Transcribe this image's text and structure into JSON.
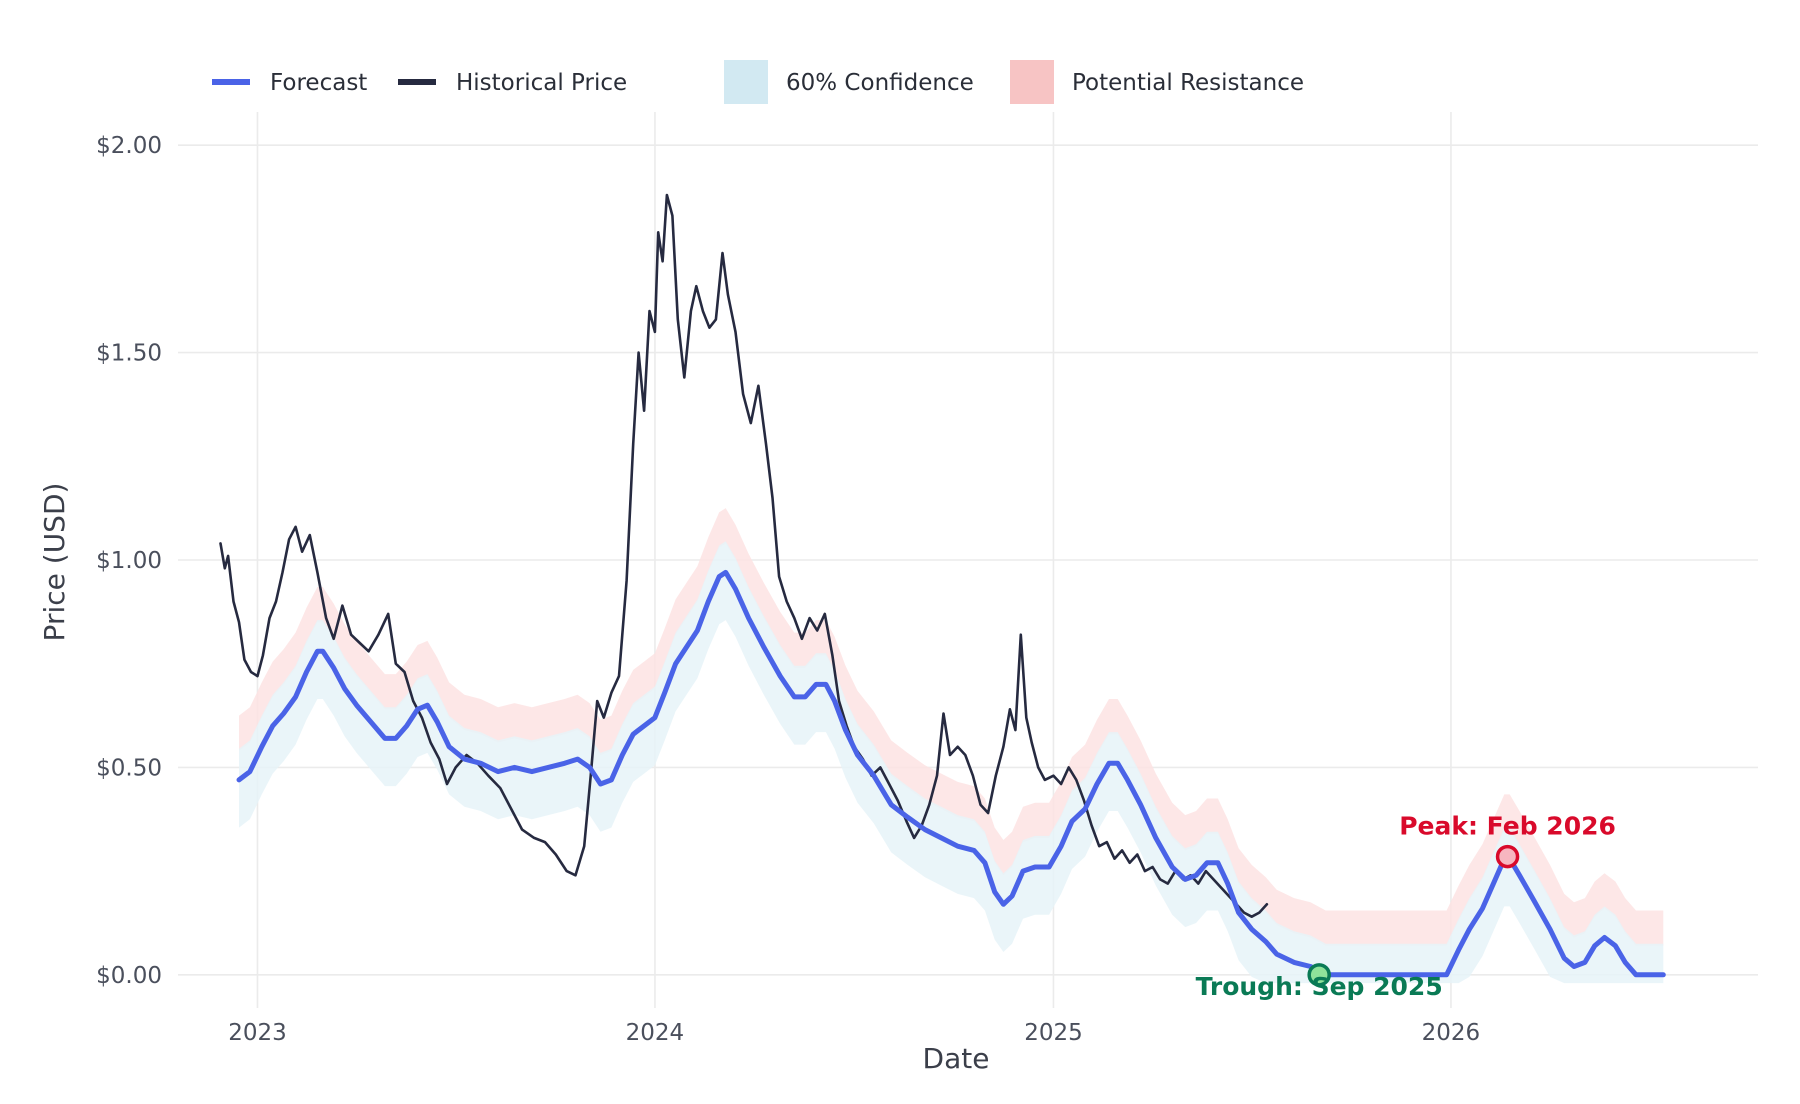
{
  "chart_data": {
    "type": "line",
    "title": "",
    "xlabel": "Date",
    "ylabel": "Price (USD)",
    "xlim": [
      "2022-10-20",
      "2026-10-10"
    ],
    "ylim": [
      -0.08,
      2.08
    ],
    "grid": true,
    "legend_position": "top-left",
    "x_ticks": [
      {
        "date": "2023-01-01",
        "label": "2023"
      },
      {
        "date": "2024-01-01",
        "label": "2024"
      },
      {
        "date": "2025-01-01",
        "label": "2025"
      },
      {
        "date": "2026-01-01",
        "label": "2026"
      }
    ],
    "y_ticks": [
      {
        "value": 0.0,
        "label": "$0.00"
      },
      {
        "value": 0.5,
        "label": "$0.50"
      },
      {
        "value": 1.0,
        "label": "$1.00"
      },
      {
        "value": 1.5,
        "label": "$1.50"
      },
      {
        "value": 2.0,
        "label": "$2.00"
      }
    ],
    "legend": [
      {
        "label": "Forecast",
        "kind": "line",
        "color": "#4a63e7"
      },
      {
        "label": "Historical Price",
        "kind": "line",
        "color": "#262a40"
      },
      {
        "label": "60% Confidence",
        "kind": "patch",
        "color": "#d2e9f2"
      },
      {
        "label": "Potential Resistance",
        "kind": "patch",
        "color": "#f7c4c4"
      }
    ],
    "series": [
      {
        "key": "historical",
        "color": "#262a40",
        "points": [
          [
            "2022-11-28",
            1.04
          ],
          [
            "2022-12-02",
            0.98
          ],
          [
            "2022-12-05",
            1.01
          ],
          [
            "2022-12-10",
            0.9
          ],
          [
            "2022-12-15",
            0.85
          ],
          [
            "2022-12-20",
            0.76
          ],
          [
            "2022-12-26",
            0.73
          ],
          [
            "2023-01-01",
            0.72
          ],
          [
            "2023-01-06",
            0.77
          ],
          [
            "2023-01-12",
            0.86
          ],
          [
            "2023-01-18",
            0.9
          ],
          [
            "2023-01-24",
            0.97
          ],
          [
            "2023-01-30",
            1.05
          ],
          [
            "2023-02-05",
            1.08
          ],
          [
            "2023-02-11",
            1.02
          ],
          [
            "2023-02-18",
            1.06
          ],
          [
            "2023-02-25",
            0.97
          ],
          [
            "2023-03-05",
            0.86
          ],
          [
            "2023-03-12",
            0.81
          ],
          [
            "2023-03-20",
            0.89
          ],
          [
            "2023-03-28",
            0.82
          ],
          [
            "2023-04-05",
            0.8
          ],
          [
            "2023-04-13",
            0.78
          ],
          [
            "2023-04-22",
            0.82
          ],
          [
            "2023-05-01",
            0.87
          ],
          [
            "2023-05-08",
            0.75
          ],
          [
            "2023-05-16",
            0.73
          ],
          [
            "2023-05-24",
            0.66
          ],
          [
            "2023-06-01",
            0.62
          ],
          [
            "2023-06-09",
            0.56
          ],
          [
            "2023-06-17",
            0.52
          ],
          [
            "2023-06-24",
            0.46
          ],
          [
            "2023-07-02",
            0.5
          ],
          [
            "2023-07-12",
            0.53
          ],
          [
            "2023-07-22",
            0.51
          ],
          [
            "2023-08-01",
            0.48
          ],
          [
            "2023-08-12",
            0.45
          ],
          [
            "2023-08-22",
            0.4
          ],
          [
            "2023-09-01",
            0.35
          ],
          [
            "2023-09-12",
            0.33
          ],
          [
            "2023-09-22",
            0.32
          ],
          [
            "2023-10-02",
            0.29
          ],
          [
            "2023-10-12",
            0.25
          ],
          [
            "2023-10-20",
            0.24
          ],
          [
            "2023-10-28",
            0.31
          ],
          [
            "2023-11-03",
            0.48
          ],
          [
            "2023-11-09",
            0.66
          ],
          [
            "2023-11-15",
            0.62
          ],
          [
            "2023-11-22",
            0.68
          ],
          [
            "2023-11-29",
            0.72
          ],
          [
            "2023-12-06",
            0.95
          ],
          [
            "2023-12-12",
            1.28
          ],
          [
            "2023-12-17",
            1.5
          ],
          [
            "2023-12-22",
            1.36
          ],
          [
            "2023-12-27",
            1.6
          ],
          [
            "2024-01-01",
            1.55
          ],
          [
            "2024-01-04",
            1.79
          ],
          [
            "2024-01-08",
            1.72
          ],
          [
            "2024-01-12",
            1.88
          ],
          [
            "2024-01-17",
            1.83
          ],
          [
            "2024-01-22",
            1.58
          ],
          [
            "2024-01-28",
            1.44
          ],
          [
            "2024-02-03",
            1.6
          ],
          [
            "2024-02-08",
            1.66
          ],
          [
            "2024-02-14",
            1.6
          ],
          [
            "2024-02-20",
            1.56
          ],
          [
            "2024-02-26",
            1.58
          ],
          [
            "2024-03-03",
            1.74
          ],
          [
            "2024-03-08",
            1.64
          ],
          [
            "2024-03-15",
            1.55
          ],
          [
            "2024-03-22",
            1.4
          ],
          [
            "2024-03-29",
            1.33
          ],
          [
            "2024-04-05",
            1.42
          ],
          [
            "2024-04-12",
            1.28
          ],
          [
            "2024-04-18",
            1.15
          ],
          [
            "2024-04-24",
            0.96
          ],
          [
            "2024-05-01",
            0.9
          ],
          [
            "2024-05-08",
            0.86
          ],
          [
            "2024-05-15",
            0.81
          ],
          [
            "2024-05-22",
            0.86
          ],
          [
            "2024-05-29",
            0.83
          ],
          [
            "2024-06-05",
            0.87
          ],
          [
            "2024-06-12",
            0.77
          ],
          [
            "2024-06-18",
            0.66
          ],
          [
            "2024-06-25",
            0.6
          ],
          [
            "2024-07-02",
            0.55
          ],
          [
            "2024-07-10",
            0.52
          ],
          [
            "2024-07-18",
            0.48
          ],
          [
            "2024-07-26",
            0.5
          ],
          [
            "2024-08-03",
            0.46
          ],
          [
            "2024-08-11",
            0.42
          ],
          [
            "2024-08-19",
            0.37
          ],
          [
            "2024-08-26",
            0.33
          ],
          [
            "2024-09-02",
            0.36
          ],
          [
            "2024-09-09",
            0.41
          ],
          [
            "2024-09-16",
            0.48
          ],
          [
            "2024-09-22",
            0.63
          ],
          [
            "2024-09-28",
            0.53
          ],
          [
            "2024-10-05",
            0.55
          ],
          [
            "2024-10-12",
            0.53
          ],
          [
            "2024-10-19",
            0.48
          ],
          [
            "2024-10-26",
            0.41
          ],
          [
            "2024-11-02",
            0.39
          ],
          [
            "2024-11-09",
            0.48
          ],
          [
            "2024-11-16",
            0.55
          ],
          [
            "2024-11-22",
            0.64
          ],
          [
            "2024-11-27",
            0.59
          ],
          [
            "2024-12-02",
            0.82
          ],
          [
            "2024-12-07",
            0.62
          ],
          [
            "2024-12-12",
            0.56
          ],
          [
            "2024-12-18",
            0.5
          ],
          [
            "2024-12-24",
            0.47
          ],
          [
            "2025-01-01",
            0.48
          ],
          [
            "2025-01-08",
            0.46
          ],
          [
            "2025-01-15",
            0.5
          ],
          [
            "2025-01-22",
            0.47
          ],
          [
            "2025-01-29",
            0.42
          ],
          [
            "2025-02-05",
            0.36
          ],
          [
            "2025-02-12",
            0.31
          ],
          [
            "2025-02-19",
            0.32
          ],
          [
            "2025-02-26",
            0.28
          ],
          [
            "2025-03-05",
            0.3
          ],
          [
            "2025-03-12",
            0.27
          ],
          [
            "2025-03-19",
            0.29
          ],
          [
            "2025-03-26",
            0.25
          ],
          [
            "2025-04-02",
            0.26
          ],
          [
            "2025-04-09",
            0.23
          ],
          [
            "2025-04-16",
            0.22
          ],
          [
            "2025-04-23",
            0.25
          ],
          [
            "2025-04-30",
            0.23
          ],
          [
            "2025-05-07",
            0.24
          ],
          [
            "2025-05-14",
            0.22
          ],
          [
            "2025-05-21",
            0.25
          ],
          [
            "2025-05-28",
            0.23
          ],
          [
            "2025-06-04",
            0.21
          ],
          [
            "2025-06-11",
            0.19
          ],
          [
            "2025-06-18",
            0.17
          ],
          [
            "2025-06-25",
            0.15
          ],
          [
            "2025-07-02",
            0.14
          ],
          [
            "2025-07-09",
            0.15
          ],
          [
            "2025-07-16",
            0.17
          ]
        ]
      },
      {
        "key": "forecast",
        "color": "#4a63e7",
        "points": [
          [
            "2022-12-15",
            0.47
          ],
          [
            "2022-12-25",
            0.49
          ],
          [
            "2023-01-05",
            0.55
          ],
          [
            "2023-01-15",
            0.6
          ],
          [
            "2023-01-25",
            0.63
          ],
          [
            "2023-02-05",
            0.67
          ],
          [
            "2023-02-15",
            0.73
          ],
          [
            "2023-02-25",
            0.78
          ],
          [
            "2023-03-02",
            0.78
          ],
          [
            "2023-03-12",
            0.74
          ],
          [
            "2023-03-22",
            0.69
          ],
          [
            "2023-04-02",
            0.65
          ],
          [
            "2023-04-15",
            0.61
          ],
          [
            "2023-04-28",
            0.57
          ],
          [
            "2023-05-08",
            0.57
          ],
          [
            "2023-05-18",
            0.6
          ],
          [
            "2023-05-28",
            0.64
          ],
          [
            "2023-06-06",
            0.65
          ],
          [
            "2023-06-15",
            0.61
          ],
          [
            "2023-06-26",
            0.55
          ],
          [
            "2023-07-10",
            0.52
          ],
          [
            "2023-07-25",
            0.51
          ],
          [
            "2023-08-10",
            0.49
          ],
          [
            "2023-08-25",
            0.5
          ],
          [
            "2023-09-10",
            0.49
          ],
          [
            "2023-09-25",
            0.5
          ],
          [
            "2023-10-10",
            0.51
          ],
          [
            "2023-10-22",
            0.52
          ],
          [
            "2023-11-02",
            0.5
          ],
          [
            "2023-11-12",
            0.46
          ],
          [
            "2023-11-22",
            0.47
          ],
          [
            "2023-12-02",
            0.53
          ],
          [
            "2023-12-12",
            0.58
          ],
          [
            "2023-12-22",
            0.6
          ],
          [
            "2024-01-01",
            0.62
          ],
          [
            "2024-01-10",
            0.68
          ],
          [
            "2024-01-20",
            0.75
          ],
          [
            "2024-01-30",
            0.79
          ],
          [
            "2024-02-09",
            0.83
          ],
          [
            "2024-02-19",
            0.9
          ],
          [
            "2024-02-29",
            0.96
          ],
          [
            "2024-03-06",
            0.97
          ],
          [
            "2024-03-15",
            0.93
          ],
          [
            "2024-03-27",
            0.86
          ],
          [
            "2024-04-10",
            0.79
          ],
          [
            "2024-04-25",
            0.72
          ],
          [
            "2024-05-08",
            0.67
          ],
          [
            "2024-05-18",
            0.67
          ],
          [
            "2024-05-28",
            0.7
          ],
          [
            "2024-06-06",
            0.7
          ],
          [
            "2024-06-14",
            0.66
          ],
          [
            "2024-06-24",
            0.59
          ],
          [
            "2024-07-05",
            0.53
          ],
          [
            "2024-07-20",
            0.48
          ],
          [
            "2024-08-05",
            0.41
          ],
          [
            "2024-08-20",
            0.38
          ],
          [
            "2024-09-05",
            0.35
          ],
          [
            "2024-09-20",
            0.33
          ],
          [
            "2024-10-05",
            0.31
          ],
          [
            "2024-10-20",
            0.3
          ],
          [
            "2024-10-30",
            0.27
          ],
          [
            "2024-11-08",
            0.2
          ],
          [
            "2024-11-16",
            0.17
          ],
          [
            "2024-11-24",
            0.19
          ],
          [
            "2024-12-04",
            0.25
          ],
          [
            "2024-12-15",
            0.26
          ],
          [
            "2024-12-28",
            0.26
          ],
          [
            "2025-01-08",
            0.31
          ],
          [
            "2025-01-18",
            0.37
          ],
          [
            "2025-01-30",
            0.4
          ],
          [
            "2025-02-10",
            0.46
          ],
          [
            "2025-02-21",
            0.51
          ],
          [
            "2025-03-01",
            0.51
          ],
          [
            "2025-03-10",
            0.47
          ],
          [
            "2025-03-22",
            0.41
          ],
          [
            "2025-04-05",
            0.33
          ],
          [
            "2025-04-20",
            0.26
          ],
          [
            "2025-05-02",
            0.23
          ],
          [
            "2025-05-12",
            0.24
          ],
          [
            "2025-05-22",
            0.27
          ],
          [
            "2025-06-01",
            0.27
          ],
          [
            "2025-06-10",
            0.22
          ],
          [
            "2025-06-20",
            0.15
          ],
          [
            "2025-07-02",
            0.11
          ],
          [
            "2025-07-15",
            0.08
          ],
          [
            "2025-07-25",
            0.05
          ],
          [
            "2025-08-10",
            0.03
          ],
          [
            "2025-08-25",
            0.02
          ],
          [
            "2025-09-08",
            0.0
          ],
          [
            "2025-09-20",
            0.0
          ],
          [
            "2025-10-15",
            0.0
          ],
          [
            "2025-11-15",
            0.0
          ],
          [
            "2025-12-20",
            0.0
          ],
          [
            "2025-12-28",
            0.0
          ],
          [
            "2026-01-08",
            0.06
          ],
          [
            "2026-01-18",
            0.11
          ],
          [
            "2026-01-30",
            0.16
          ],
          [
            "2026-02-09",
            0.22
          ],
          [
            "2026-02-19",
            0.28
          ],
          [
            "2026-02-24",
            0.28
          ],
          [
            "2026-03-05",
            0.24
          ],
          [
            "2026-03-18",
            0.18
          ],
          [
            "2026-04-02",
            0.11
          ],
          [
            "2026-04-15",
            0.04
          ],
          [
            "2026-04-24",
            0.02
          ],
          [
            "2026-05-04",
            0.03
          ],
          [
            "2026-05-13",
            0.07
          ],
          [
            "2026-05-22",
            0.09
          ],
          [
            "2026-06-01",
            0.07
          ],
          [
            "2026-06-10",
            0.03
          ],
          [
            "2026-06-20",
            0.0
          ],
          [
            "2026-07-15",
            0.0
          ]
        ]
      }
    ],
    "annotations": [
      {
        "label": "Peak: Feb 2026",
        "date": "2026-02-22",
        "value": 0.285,
        "color": "#d90a2b",
        "marker_fill": "#f7b6c0",
        "label_position": "above"
      },
      {
        "label": "Trough: Sep 2025",
        "date": "2025-09-02",
        "value": 0.0,
        "color": "#0a7a55",
        "marker_fill": "#8fe29a",
        "label_position": "below"
      }
    ]
  }
}
